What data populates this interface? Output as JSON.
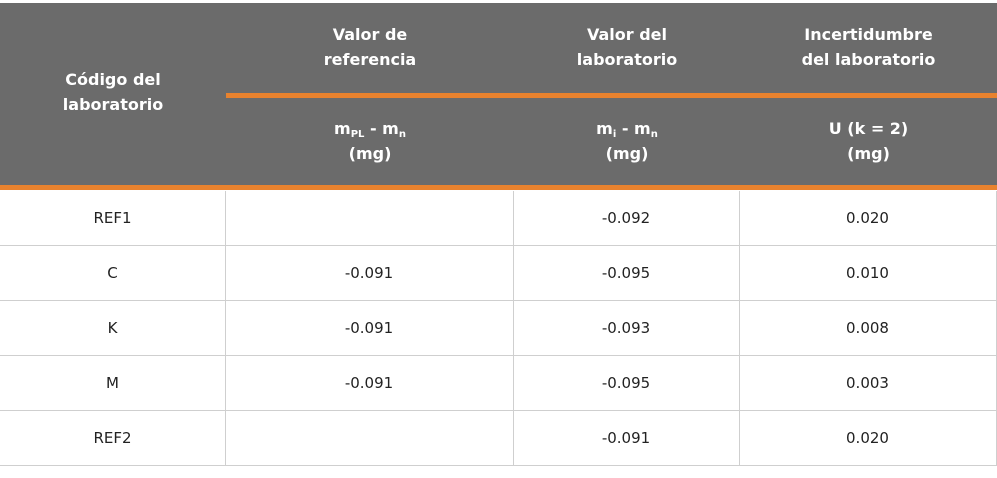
{
  "header": {
    "code": [
      "Código del",
      "laboratorio"
    ],
    "columns": [
      {
        "title": [
          "Valor de",
          "referencia"
        ],
        "formula": {
          "m1": "m",
          "s1": "PL",
          "op": " - m",
          "s2": "n"
        },
        "unit": "(mg)"
      },
      {
        "title": [
          "Valor del",
          "laboratorio"
        ],
        "formula": {
          "m1": "m",
          "s1": "i",
          "op": " - m",
          "s2": "n"
        },
        "unit": "(mg)"
      },
      {
        "title": [
          "Incertidumbre",
          "del laboratorio"
        ],
        "formula": {
          "m1": "U (k = 2)"
        },
        "unit": "(mg)"
      }
    ]
  },
  "table": {
    "rows": [
      [
        "REF1",
        null,
        "-0.092",
        "0.020"
      ],
      [
        "C",
        "-0.091",
        "-0.095",
        "0.010"
      ],
      [
        "K",
        "-0.091",
        "-0.093",
        "0.008"
      ],
      [
        "M",
        "-0.091",
        "-0.095",
        "0.003"
      ],
      [
        "REF2",
        null,
        "-0.091",
        "0.020"
      ]
    ]
  }
}
